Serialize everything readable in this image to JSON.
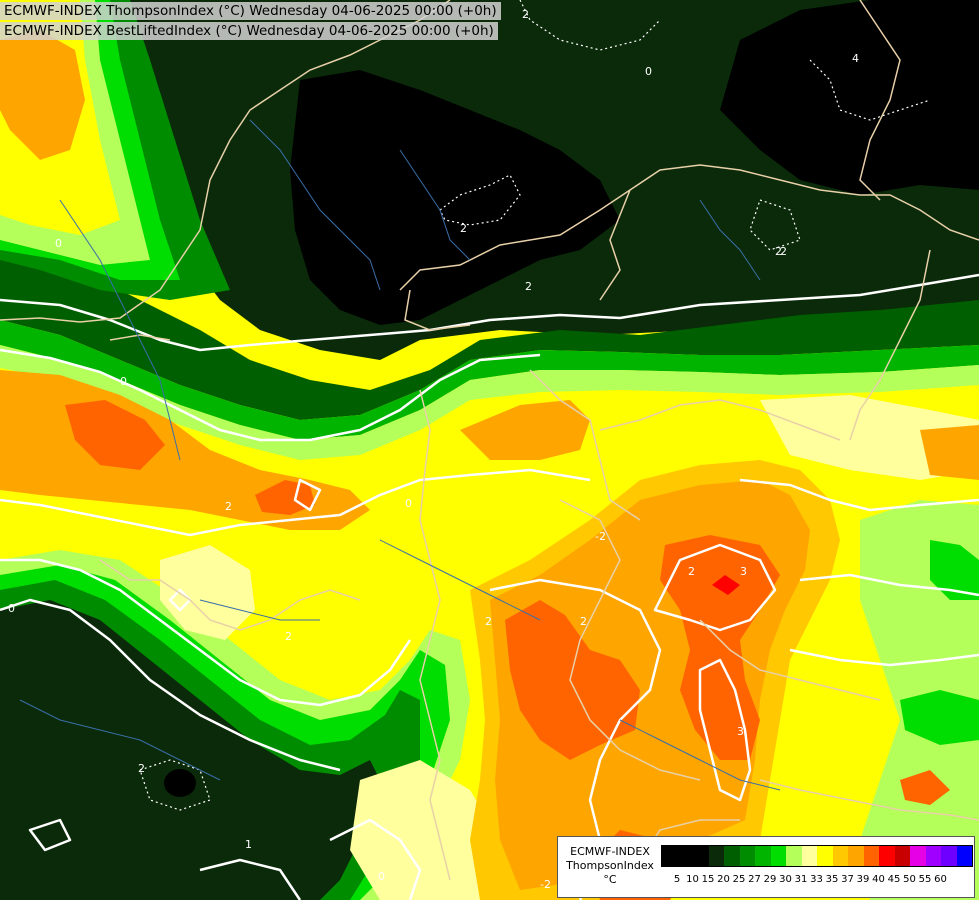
{
  "header": {
    "title_line1": "ECMWF-INDEX ThompsonIndex (°C) Wednesday 04-06-2025 00:00 (+0h)",
    "title_line2": "ECMWF-INDEX BestLiftedIndex (°C) Wednesday 04-06-2025 00:00 (+0h)"
  },
  "legend": {
    "model": "ECMWF-INDEX",
    "variable": "ThompsonIndex",
    "unit": "°C",
    "ticks": [
      "5",
      "10",
      "15",
      "20",
      "25",
      "27",
      "29",
      "30",
      "31",
      "33",
      "35",
      "37",
      "39",
      "40",
      "45",
      "50",
      "55",
      "60"
    ],
    "colors": [
      "#000000",
      "#000000",
      "#000000",
      "#0a2a0a",
      "#005f00",
      "#008c00",
      "#00b400",
      "#00dd00",
      "#b4ff5a",
      "#ffff9e",
      "#ffff00",
      "#ffc800",
      "#ffa500",
      "#ff6400",
      "#ff0000",
      "#c80000",
      "#e600e6",
      "#a000ff",
      "#6e00ff",
      "#0000ff"
    ]
  },
  "contour_labels": [
    "2",
    "0",
    "4",
    "2",
    "2",
    "2",
    "2",
    "3",
    "0",
    "0",
    "2",
    "3",
    "0",
    "2",
    "2",
    "2",
    "2",
    "1",
    "0",
    "-2",
    "2",
    "0",
    "-2"
  ],
  "colors": {
    "black_zone": "#000000",
    "dark_green": "#0a2a0a",
    "mid_green": "#005f00",
    "green": "#008c00",
    "bright_green": "#00dd00",
    "lime": "#b4ff5a",
    "pale_yellow": "#ffff9e",
    "yellow": "#ffff00",
    "gold": "#ffc800",
    "orange": "#ffa500",
    "red_orange": "#ff6400",
    "red": "#ff0000",
    "contour_line": "#ffffff",
    "border_line": "#e8d0a8",
    "river_line": "#3a6ea8"
  }
}
